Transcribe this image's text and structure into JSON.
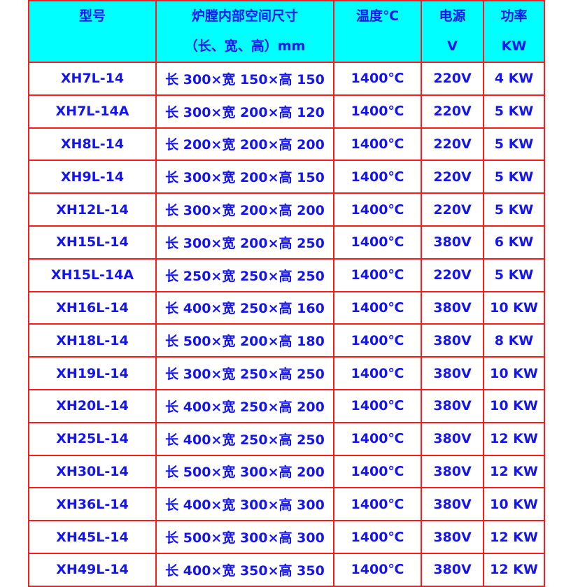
{
  "header": {
    "model": "型号",
    "size_line1": "炉膛内部空间尺寸",
    "size_line2": "（长、宽、高）mm",
    "temp": "温度℃",
    "power_line1": "电源",
    "power_line2": "V",
    "watt_line1": "功率",
    "watt_line2": "KW"
  },
  "rows": [
    {
      "model": "XH7L-14",
      "size": "长 300×宽 150×高 150",
      "temp": "1400℃",
      "voltage": "220V",
      "power": "4 KW"
    },
    {
      "model": "XH7L-14A",
      "size": "长 300×宽 200×高 120",
      "temp": "1400℃",
      "voltage": "220V",
      "power": "5 KW"
    },
    {
      "model": "XH8L-14",
      "size": "长 200×宽 200×高 200",
      "temp": "1400℃",
      "voltage": "220V",
      "power": "5 KW"
    },
    {
      "model": "XH9L-14",
      "size": "长 300×宽 200×高 150",
      "temp": "1400℃",
      "voltage": "220V",
      "power": "5 KW"
    },
    {
      "model": "XH12L-14",
      "size": "长 300×宽 200×高 200",
      "temp": "1400℃",
      "voltage": "220V",
      "power": "5 KW"
    },
    {
      "model": "XH15L-14",
      "size": "长 300×宽 200×高 250",
      "temp": "1400℃",
      "voltage": "380V",
      "power": "6 KW"
    },
    {
      "model": "XH15L-14A",
      "size": "长 250×宽 250×高 250",
      "temp": "1400℃",
      "voltage": "220V",
      "power": "5 KW"
    },
    {
      "model": "XH16L-14",
      "size": "长 400×宽 250×高 160",
      "temp": "1400℃",
      "voltage": "380V",
      "power": "10 KW"
    },
    {
      "model": "XH18L-14",
      "size": "长 500×宽 200×高 180",
      "temp": "1400℃",
      "voltage": "380V",
      "power": "8 KW"
    },
    {
      "model": "XH19L-14",
      "size": "长 300×宽 250×高 250",
      "temp": "1400℃",
      "voltage": "380V",
      "power": "10 KW"
    },
    {
      "model": "XH20L-14",
      "size": "长 400×宽 250×高 200",
      "temp": "1400℃",
      "voltage": "380V",
      "power": "10 KW"
    },
    {
      "model": "XH25L-14",
      "size": "长 400×宽 250×高 250",
      "temp": "1400℃",
      "voltage": "380V",
      "power": "12 KW"
    },
    {
      "model": "XH30L-14",
      "size": "长 500×宽 300×高 200",
      "temp": "1400℃",
      "voltage": "380V",
      "power": "12 KW"
    },
    {
      "model": "XH36L-14",
      "size": "长 400×宽 300×高 300",
      "temp": "1400℃",
      "voltage": "380V",
      "power": "10 KW"
    },
    {
      "model": "XH45L-14",
      "size": "长 500×宽 300×高 300",
      "temp": "1400℃",
      "voltage": "380V",
      "power": "12 KW"
    },
    {
      "model": "XH49L-14",
      "size": "长 400×宽 350×高 350",
      "temp": "1400℃",
      "voltage": "380V",
      "power": "12 KW"
    }
  ],
  "colors": {
    "header_bg": "#00ffff",
    "border": "#ff1a1a",
    "text": "#1414f0"
  }
}
